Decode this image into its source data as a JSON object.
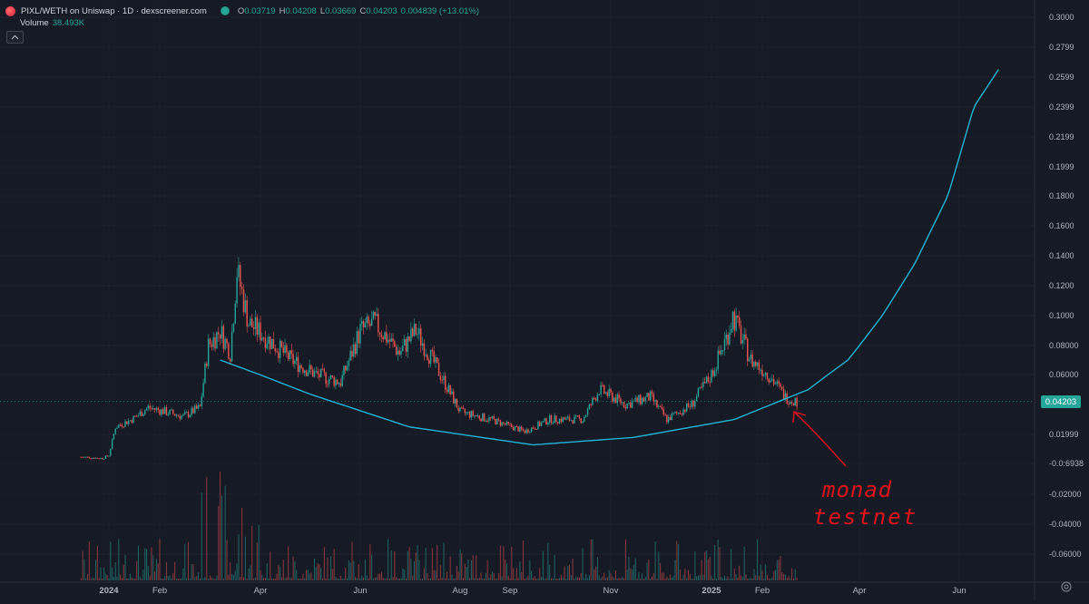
{
  "legend": {
    "symbol": "PIXL/WETH on Uniswap · 1D · dexscreener.com",
    "labels": {
      "open": "O",
      "high": "H",
      "low": "L",
      "close": "C"
    },
    "open": "0.03719",
    "high": "0.04208",
    "low": "0.03669",
    "close": "0.04203",
    "change": "0.004839 (+13.01%)",
    "volume_label": "Volume",
    "volume_value": "38.493K",
    "up_color": "#26a69a",
    "down_color": "#ef5350"
  },
  "last_price_badge": "0.04203",
  "icons": {
    "collapse": "chevron-up-icon",
    "settings": "gear-icon",
    "logo": "token-logo-icon",
    "status": "status-dot-icon"
  },
  "chart_data": {
    "type": "candlestick",
    "x_tick_labels": [
      "2024",
      "Feb",
      "Apr",
      "Jun",
      "Aug",
      "Sep",
      "Nov",
      "2025",
      "Feb",
      "Apr",
      "Jun"
    ],
    "x_tick_dates": [
      "2024-01-01",
      "2024-02-01",
      "2024-04-01",
      "2024-06-01",
      "2024-08-01",
      "2024-09-01",
      "2024-11-01",
      "2025-01-01",
      "2025-02-01",
      "2025-04-01",
      "2025-06-01"
    ],
    "y_tick_labels": [
      "0.3000",
      "0.2799",
      "0.2599",
      "0.2399",
      "0.2199",
      "0.1999",
      "0.1800",
      "0.1600",
      "0.1400",
      "0.1200",
      "0.1000",
      "0.08000",
      "0.06000",
      "0.01999",
      "-0.0:6938",
      "-0.02000",
      "-0.04000",
      "-0.06000"
    ],
    "last_price": 0.04203,
    "line_color": "#22b4d4",
    "price_path": [
      [
        "2023-12-15",
        0.005
      ],
      [
        "2023-12-28",
        0.004
      ],
      [
        "2024-01-01",
        0.006
      ],
      [
        "2024-01-05",
        0.025
      ],
      [
        "2024-01-15",
        0.03
      ],
      [
        "2024-01-25",
        0.038
      ],
      [
        "2024-02-05",
        0.035
      ],
      [
        "2024-02-15",
        0.032
      ],
      [
        "2024-02-25",
        0.038
      ],
      [
        "2024-03-01",
        0.08
      ],
      [
        "2024-03-08",
        0.09
      ],
      [
        "2024-03-14",
        0.075
      ],
      [
        "2024-03-18",
        0.13
      ],
      [
        "2024-03-25",
        0.095
      ],
      [
        "2024-04-05",
        0.085
      ],
      [
        "2024-04-20",
        0.07
      ],
      [
        "2024-05-05",
        0.06
      ],
      [
        "2024-05-20",
        0.055
      ],
      [
        "2024-06-01",
        0.09
      ],
      [
        "2024-06-10",
        0.095
      ],
      [
        "2024-06-25",
        0.075
      ],
      [
        "2024-07-05",
        0.09
      ],
      [
        "2024-07-20",
        0.06
      ],
      [
        "2024-08-01",
        0.035
      ],
      [
        "2024-08-20",
        0.03
      ],
      [
        "2024-09-10",
        0.022
      ],
      [
        "2024-09-25",
        0.03
      ],
      [
        "2024-10-15",
        0.03
      ],
      [
        "2024-10-25",
        0.05
      ],
      [
        "2024-11-10",
        0.04
      ],
      [
        "2024-11-25",
        0.045
      ],
      [
        "2024-12-05",
        0.03
      ],
      [
        "2024-12-20",
        0.04
      ],
      [
        "2025-01-01",
        0.06
      ],
      [
        "2025-01-10",
        0.085
      ],
      [
        "2025-01-14",
        0.1
      ],
      [
        "2025-01-25",
        0.07
      ],
      [
        "2025-02-05",
        0.06
      ],
      [
        "2025-02-15",
        0.045
      ],
      [
        "2025-02-22",
        0.042
      ]
    ],
    "trend_curve": [
      [
        "2024-03-08",
        0.07
      ],
      [
        "2024-05-01",
        0.047
      ],
      [
        "2024-07-01",
        0.025
      ],
      [
        "2024-09-15",
        0.013
      ],
      [
        "2024-11-15",
        0.018
      ],
      [
        "2025-01-15",
        0.03
      ],
      [
        "2025-03-01",
        0.05
      ],
      [
        "2025-03-25",
        0.07
      ],
      [
        "2025-04-15",
        0.1
      ],
      [
        "2025-05-05",
        0.135
      ],
      [
        "2025-05-25",
        0.18
      ],
      [
        "2025-06-10",
        0.24
      ],
      [
        "2025-06-25",
        0.265
      ]
    ],
    "annotation": {
      "text": "monad testnet",
      "color": "#e0121b"
    }
  }
}
